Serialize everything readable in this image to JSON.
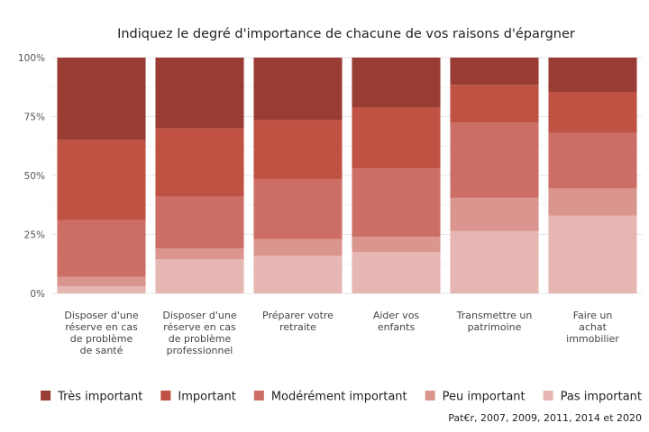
{
  "chart_data": {
    "type": "bar",
    "stacked": true,
    "title": "Indiquez le degré d'importance de chacune de vos raisons d'épargner",
    "caption": "Pat€r, 2007, 2009, 2011, 2014 et 2020",
    "ylim": [
      0,
      100
    ],
    "yticks": [
      "0%",
      "25%",
      "50%",
      "75%",
      "100%"
    ],
    "ytick_values": [
      0,
      25,
      50,
      75,
      100
    ],
    "grid": true,
    "legend_position": "bottom",
    "categories": [
      [
        "Disposer d'une",
        "réserve en cas",
        "de problème",
        "de santé"
      ],
      [
        "Disposer d'une",
        "réserve en cas",
        "de problème",
        "professionnel"
      ],
      [
        "Préparer votre",
        "retraite"
      ],
      [
        "Aider vos",
        "enfants"
      ],
      [
        "Transmettre un",
        "patrimoine"
      ],
      [
        "Faire un",
        "achat",
        "immobilier"
      ]
    ],
    "series": [
      {
        "name": "Très important",
        "color": "#993d34",
        "values": [
          35,
          30,
          26.5,
          21,
          11.5,
          14.5
        ]
      },
      {
        "name": "Important",
        "color": "#c05244",
        "values": [
          34,
          29,
          25,
          26,
          16,
          17.5
        ]
      },
      {
        "name": "Modérément important",
        "color": "#cd6e66",
        "values": [
          24,
          22,
          25.5,
          29,
          32,
          23.5
        ]
      },
      {
        "name": "Peu important",
        "color": "#da968e",
        "values": [
          4,
          4.5,
          7,
          6.5,
          14,
          11.5
        ]
      },
      {
        "name": "Pas important",
        "color": "#e6b7b2",
        "values": [
          3,
          14.5,
          16,
          17.5,
          26.5,
          33
        ]
      }
    ]
  }
}
